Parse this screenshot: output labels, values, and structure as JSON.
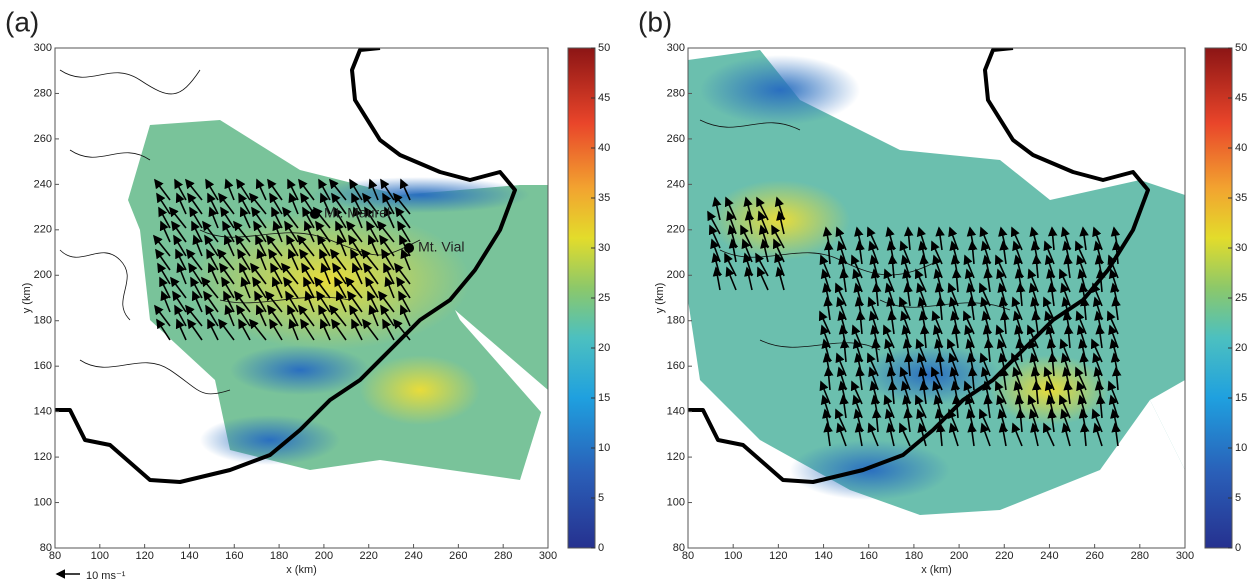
{
  "chart_data": [
    {
      "type": "map",
      "panel_label": "(a)",
      "xlabel": "x (km)",
      "ylabel": "y (km)",
      "xlim": [
        80,
        300
      ],
      "ylim": [
        80,
        300
      ],
      "xticks": [
        80,
        100,
        120,
        140,
        160,
        180,
        200,
        220,
        240,
        260,
        280,
        300
      ],
      "yticks": [
        80,
        100,
        120,
        140,
        160,
        180,
        200,
        220,
        240,
        260,
        280,
        300
      ],
      "points": [
        {
          "label": "Mt. Maurel",
          "x": 196,
          "y": 227
        },
        {
          "label": "Mt. Vial",
          "x": 238,
          "y": 212
        }
      ],
      "colorbar": {
        "lim": [
          0,
          50
        ],
        "ticks": [
          0,
          5,
          10,
          15,
          20,
          25,
          30,
          35,
          40,
          45,
          50
        ]
      },
      "vector_scale_label": "10 ms⁻¹"
    },
    {
      "type": "map",
      "panel_label": "(b)",
      "xlabel": "x (km)",
      "ylabel": "y (km)",
      "xlim": [
        80,
        300
      ],
      "ylim": [
        80,
        300
      ],
      "xticks": [
        80,
        100,
        120,
        140,
        160,
        180,
        200,
        220,
        240,
        260,
        280,
        300
      ],
      "yticks": [
        80,
        100,
        120,
        140,
        160,
        180,
        200,
        220,
        240,
        260,
        280,
        300
      ],
      "colorbar": {
        "lim": [
          0,
          50
        ],
        "ticks": [
          0,
          5,
          10,
          15,
          20,
          25,
          30,
          35,
          40,
          45,
          50
        ]
      }
    }
  ]
}
